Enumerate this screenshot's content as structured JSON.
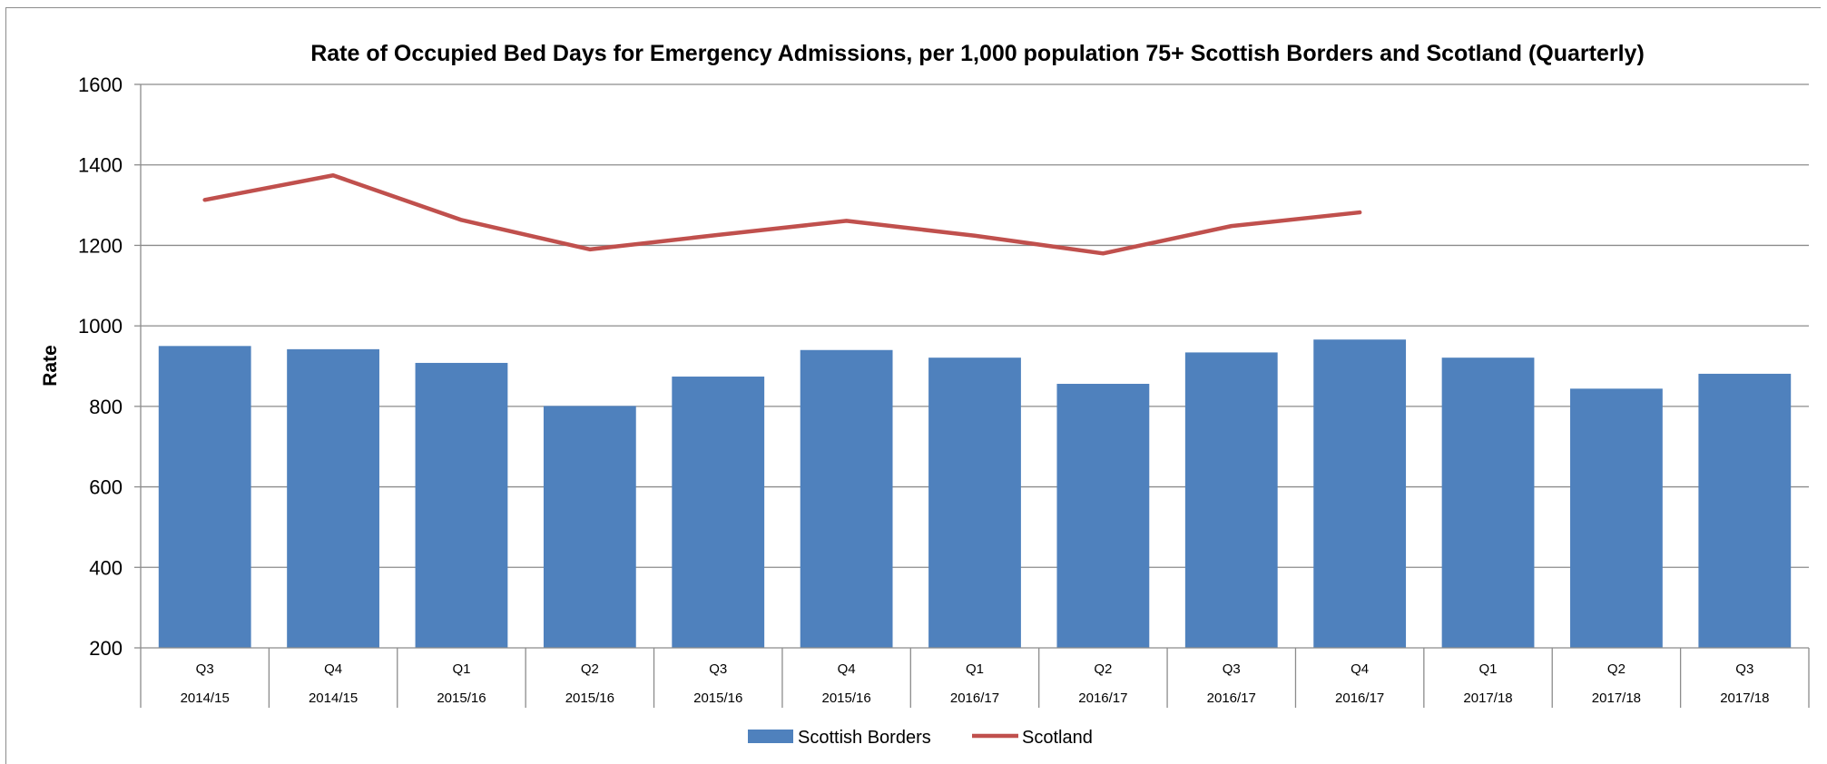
{
  "chart_data": {
    "type": "bar",
    "title": "Rate of Occupied Bed Days for Emergency Admissions, per 1,000 population 75+ Scottish Borders and Scotland (Quarterly)",
    "xlabel": "",
    "ylabel": "Rate",
    "ylim": [
      200,
      1600
    ],
    "yticks": [
      200,
      400,
      600,
      800,
      1000,
      1200,
      1400,
      1600
    ],
    "grid": true,
    "legend_position": "bottom",
    "categories": [
      {
        "quarter": "Q3",
        "year": "2014/15"
      },
      {
        "quarter": "Q4",
        "year": "2014/15"
      },
      {
        "quarter": "Q1",
        "year": "2015/16"
      },
      {
        "quarter": "Q2",
        "year": "2015/16"
      },
      {
        "quarter": "Q3",
        "year": "2015/16"
      },
      {
        "quarter": "Q4",
        "year": "2015/16"
      },
      {
        "quarter": "Q1",
        "year": "2016/17"
      },
      {
        "quarter": "Q2",
        "year": "2016/17"
      },
      {
        "quarter": "Q3",
        "year": "2016/17"
      },
      {
        "quarter": "Q4",
        "year": "2016/17"
      },
      {
        "quarter": "Q1",
        "year": "2017/18"
      },
      {
        "quarter": "Q2",
        "year": "2017/18"
      },
      {
        "quarter": "Q3",
        "year": "2017/18"
      }
    ],
    "series": [
      {
        "name": "Scottish Borders",
        "kind": "bar",
        "color": "#4f81bd",
        "values": [
          950,
          942,
          908,
          801,
          874,
          940,
          921,
          856,
          934,
          966,
          921,
          844,
          881
        ]
      },
      {
        "name": "Scotland",
        "kind": "line",
        "color": "#c0504d",
        "values": [
          1313,
          1374,
          1263,
          1190,
          1226,
          1261,
          1224,
          1180,
          1248,
          1282,
          null,
          null,
          null
        ]
      }
    ]
  }
}
